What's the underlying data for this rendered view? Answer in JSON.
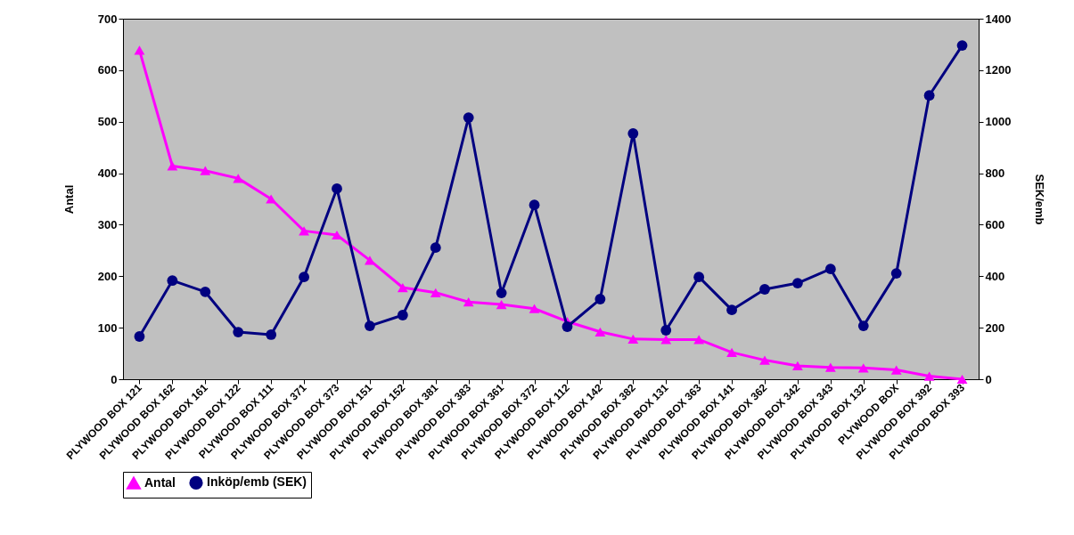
{
  "chart_data": {
    "type": "line",
    "categories": [
      "PLYWOOD BOX 121",
      "PLYWOOD BOX 162",
      "PLYWOOD BOX 161",
      "PLYWOOD BOX 122",
      "PLYWOOD BOX 111",
      "PLYWOOD BOX 371",
      "PLYWOOD BOX 373",
      "PLYWOOD BOX 151",
      "PLYWOOD BOX 152",
      "PLYWOOD BOX 381",
      "PLYWOOD BOX 383",
      "PLYWOOD BOX 361",
      "PLYWOOD BOX 372",
      "PLYWOOD BOX 112",
      "PLYWOOD BOX 142",
      "PLYWOOD BOX 382",
      "PLYWOOD BOX 131",
      "PLYWOOD BOX 363",
      "PLYWOOD BOX 141",
      "PLYWOOD BOX 362",
      "PLYWOOD BOX 342",
      "PLYWOOD BOX 343",
      "PLYWOOD BOX 132",
      "PLYWOOD BOX",
      "PLYWOOD BOX 392",
      "PLYWOOD BOX 393"
    ],
    "series": [
      {
        "name": "Antal",
        "color": "#ff00ff",
        "marker": "triangle",
        "values": [
          639,
          414,
          405,
          390,
          350,
          288,
          280,
          231,
          178,
          168,
          150,
          145,
          137,
          112,
          92,
          78,
          77,
          77,
          52,
          37,
          26,
          23,
          22,
          18,
          6,
          0
        ]
      },
      {
        "name": "Inköp/emb (SEK)",
        "color": "#000080",
        "marker": "circle",
        "axis": "y2",
        "values": [
          166,
          383,
          339,
          183,
          173,
          397,
          740,
          207,
          249,
          511,
          1016,
          335,
          677,
          204,
          311,
          954,
          190,
          397,
          269,
          349,
          373,
          428,
          207,
          411,
          1102,
          1296
        ]
      }
    ],
    "ylabel": "Antal",
    "y2label": "SEK/emb",
    "ylim": [
      0,
      700
    ],
    "yticks": [
      0,
      100,
      200,
      300,
      400,
      500,
      600,
      700
    ],
    "y2lim": [
      0,
      1400
    ],
    "y2ticks": [
      0,
      200,
      400,
      600,
      800,
      1000,
      1200,
      1400
    ],
    "grid": false,
    "legend": "bottom",
    "line_style": "solid"
  }
}
